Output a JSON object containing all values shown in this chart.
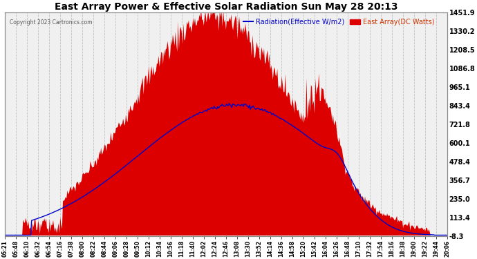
{
  "title": "East Array Power & Effective Solar Radiation Sun May 28 20:13",
  "copyright": "Copyright 2023 Cartronics.com",
  "legend_radiation": "Radiation(Effective W/m2)",
  "legend_array": "East Array(DC Watts)",
  "ylabel_right_ticks": [
    1451.9,
    1330.2,
    1208.5,
    1086.8,
    965.1,
    843.4,
    721.8,
    600.1,
    478.4,
    356.7,
    235.0,
    113.4,
    -8.3
  ],
  "ymin": -8.3,
  "ymax": 1451.9,
  "bg_color": "#ffffff",
  "plot_bg_color": "#f0f0f0",
  "grid_color": "#bbbbbb",
  "fill_color": "#dd0000",
  "line_color": "#0000cc",
  "title_color": "#000000",
  "copyright_color": "#555555",
  "x_labels": [
    "05:21",
    "05:48",
    "06:10",
    "06:32",
    "06:54",
    "07:16",
    "07:38",
    "08:00",
    "08:22",
    "08:44",
    "09:06",
    "09:28",
    "09:50",
    "10:12",
    "10:34",
    "10:56",
    "11:18",
    "11:40",
    "12:02",
    "12:24",
    "12:46",
    "13:08",
    "13:30",
    "13:52",
    "14:14",
    "14:36",
    "14:58",
    "15:20",
    "15:42",
    "16:04",
    "16:26",
    "16:48",
    "17:10",
    "17:32",
    "17:54",
    "18:16",
    "18:38",
    "19:00",
    "19:22",
    "19:44",
    "20:06"
  ]
}
